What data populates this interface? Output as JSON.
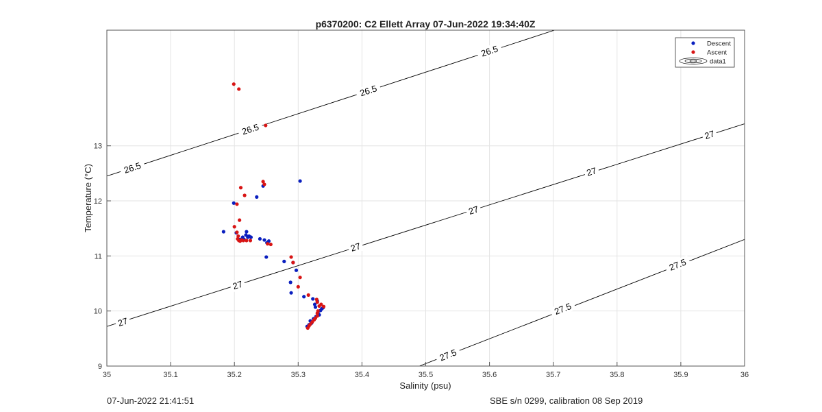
{
  "footer": {
    "left": "07-Jun-2022 21:41:51",
    "right": "SBE s/n 0299, calibration 08 Sep 2019"
  },
  "chart_data": {
    "type": "scatter",
    "title": "p6370200: C2 Ellett Array 07-Jun-2022 19:34:40Z",
    "xlabel": "Salinity (psu)",
    "ylabel": "Temperature (°C)",
    "xlim": [
      35,
      36
    ],
    "ylim": [
      9,
      15.1
    ],
    "xticks": [
      35,
      35.1,
      35.2,
      35.3,
      35.4,
      35.5,
      35.6,
      35.7,
      35.8,
      35.9,
      36
    ],
    "xtick_labels": [
      "35",
      "35.1",
      "35.2",
      "35.3",
      "35.4",
      "35.5",
      "35.6",
      "35.7",
      "35.8",
      "35.9",
      "36"
    ],
    "yticks": [
      9,
      10,
      11,
      12,
      13
    ],
    "ytick_labels": [
      "9",
      "10",
      "11",
      "12",
      "13"
    ],
    "grid": true,
    "legend_position": "top-right",
    "legend": [
      {
        "label": "Descent",
        "kind": "dot",
        "color": "#0a1fbf"
      },
      {
        "label": "Ascent",
        "kind": "dot",
        "color": "#d81515"
      },
      {
        "label": "data1",
        "kind": "contour",
        "color": "#000000"
      }
    ],
    "contours": [
      {
        "level": "26.5",
        "line": [
          [
            35,
            12.45
          ],
          [
            35.702,
            15.1
          ]
        ],
        "labels": [
          [
            35.04,
            12.6
          ],
          [
            35.225,
            13.3
          ],
          [
            35.41,
            14.0
          ],
          [
            35.6,
            14.72
          ]
        ]
      },
      {
        "level": "27",
        "line": [
          [
            35,
            9.72
          ],
          [
            36,
            13.4
          ]
        ],
        "labels": [
          [
            35.025,
            9.8
          ],
          [
            35.205,
            10.47
          ],
          [
            35.39,
            11.16
          ],
          [
            35.575,
            11.83
          ],
          [
            35.76,
            12.53
          ],
          [
            35.945,
            13.2
          ]
        ]
      },
      {
        "level": "27.5",
        "line": [
          [
            35.49,
            9
          ],
          [
            36,
            11.3
          ]
        ],
        "labels": [
          [
            35.535,
            9.2
          ],
          [
            35.715,
            10.04
          ],
          [
            35.895,
            10.84
          ]
        ]
      }
    ],
    "series": [
      {
        "name": "Descent",
        "color": "#0a1fbf",
        "points": [
          [
            35.183,
            11.44
          ],
          [
            35.199,
            11.96
          ],
          [
            35.203,
            11.42
          ],
          [
            35.209,
            11.3
          ],
          [
            35.213,
            11.34
          ],
          [
            35.215,
            11.3
          ],
          [
            35.218,
            11.38
          ],
          [
            35.219,
            11.44
          ],
          [
            35.221,
            11.34
          ],
          [
            35.223,
            11.36
          ],
          [
            35.226,
            11.34
          ],
          [
            35.235,
            12.07
          ],
          [
            35.24,
            11.31
          ],
          [
            35.245,
            12.27
          ],
          [
            35.247,
            11.29
          ],
          [
            35.25,
            10.98
          ],
          [
            35.251,
            11.24
          ],
          [
            35.254,
            11.27
          ],
          [
            35.278,
            10.9
          ],
          [
            35.288,
            10.52
          ],
          [
            35.289,
            10.33
          ],
          [
            35.292,
            10.88
          ],
          [
            35.297,
            10.74
          ],
          [
            35.303,
            12.36
          ],
          [
            35.309,
            10.26
          ],
          [
            35.314,
            9.72
          ],
          [
            35.317,
            9.75
          ],
          [
            35.319,
            9.82
          ],
          [
            35.321,
            9.78
          ],
          [
            35.323,
            10.22
          ],
          [
            35.324,
            9.86
          ],
          [
            35.326,
            10.12
          ],
          [
            35.327,
            10.07
          ],
          [
            35.328,
            9.9
          ],
          [
            35.33,
            10.18
          ],
          [
            35.331,
            9.97
          ],
          [
            35.333,
            9.93
          ],
          [
            35.335,
            10.01
          ],
          [
            35.337,
            10.04
          ],
          [
            35.339,
            10.06
          ]
        ]
      },
      {
        "name": "Ascent",
        "color": "#d81515",
        "points": [
          [
            35.199,
            14.12
          ],
          [
            35.207,
            14.03
          ],
          [
            35.249,
            13.37
          ],
          [
            35.21,
            12.24
          ],
          [
            35.245,
            12.35
          ],
          [
            35.247,
            12.3
          ],
          [
            35.216,
            12.1
          ],
          [
            35.204,
            11.94
          ],
          [
            35.208,
            11.65
          ],
          [
            35.2,
            11.53
          ],
          [
            35.204,
            11.43
          ],
          [
            35.206,
            11.36
          ],
          [
            35.205,
            11.31
          ],
          [
            35.207,
            11.28
          ],
          [
            35.209,
            11.27
          ],
          [
            35.211,
            11.29
          ],
          [
            35.214,
            11.28
          ],
          [
            35.219,
            11.28
          ],
          [
            35.225,
            11.28
          ],
          [
            35.252,
            11.22
          ],
          [
            35.257,
            11.21
          ],
          [
            35.289,
            10.98
          ],
          [
            35.292,
            10.88
          ],
          [
            35.303,
            10.61
          ],
          [
            35.3,
            10.44
          ],
          [
            35.316,
            10.29
          ],
          [
            35.329,
            10.21
          ],
          [
            35.33,
            10.16
          ],
          [
            35.336,
            10.12
          ],
          [
            35.333,
            10.09
          ],
          [
            35.34,
            10.08
          ],
          [
            35.331,
            10.0
          ],
          [
            35.33,
            9.96
          ],
          [
            35.33,
            9.91
          ],
          [
            35.327,
            9.87
          ],
          [
            35.325,
            9.84
          ],
          [
            35.322,
            9.8
          ],
          [
            35.319,
            9.76
          ],
          [
            35.317,
            9.73
          ],
          [
            35.315,
            9.69
          ]
        ]
      }
    ]
  }
}
